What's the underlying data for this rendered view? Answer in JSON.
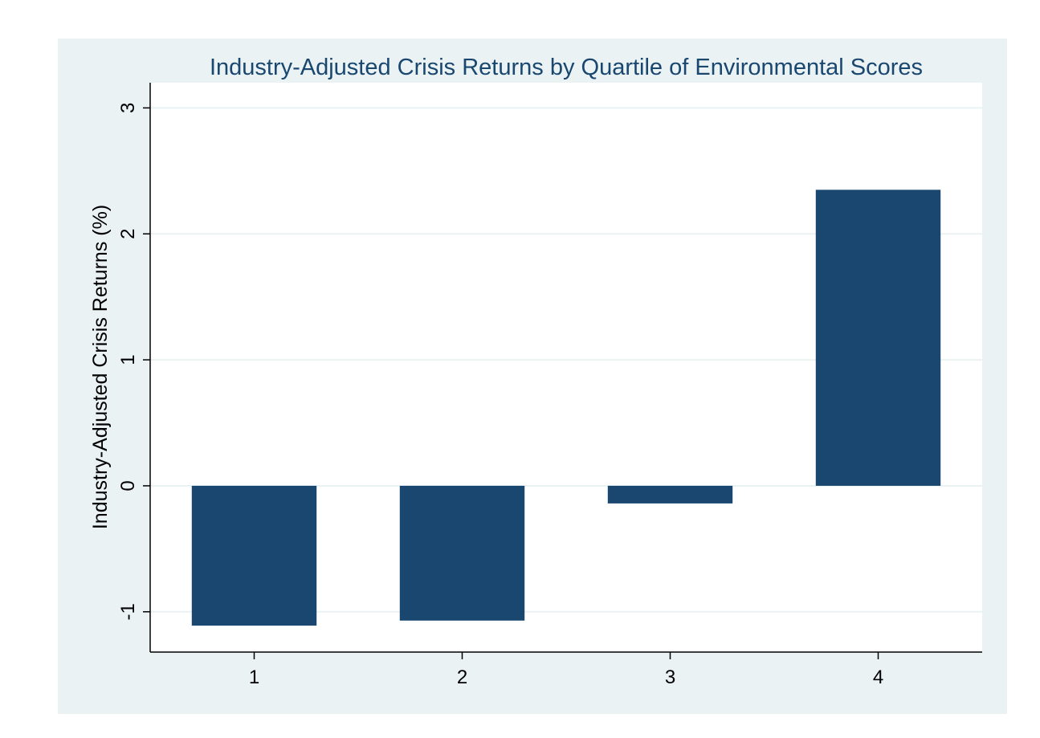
{
  "chart_data": {
    "type": "bar",
    "title": "Industry-Adjusted Crisis Returns by Quartile of Environmental Scores",
    "xlabel": "",
    "ylabel": "Industry-Adjusted Crisis Returns (%)",
    "categories": [
      "1",
      "2",
      "3",
      "4"
    ],
    "values": [
      -1.11,
      -1.07,
      -0.14,
      2.35
    ],
    "ylim": [
      -1.32,
      3.2
    ],
    "yticks": [
      -1,
      0,
      1,
      2,
      3
    ],
    "ytick_labels": [
      "-1",
      "0",
      "1",
      "2",
      "3"
    ],
    "grid": true,
    "legend": "none",
    "colors": {
      "bar": "#1a476f",
      "plot_background": "#ffffff",
      "outer_background": "#eaf2f3",
      "grid": "#eaf2f3",
      "title": "#1a476f"
    }
  }
}
